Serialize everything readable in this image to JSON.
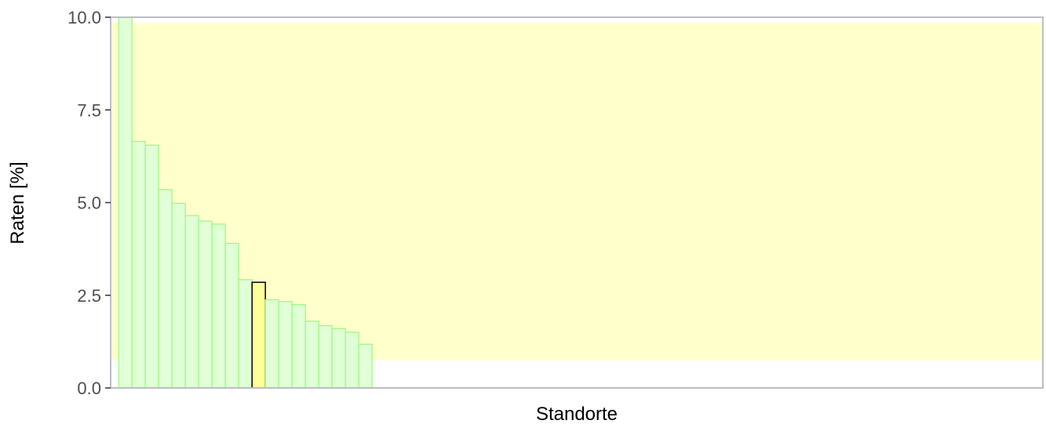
{
  "chart_data": {
    "type": "bar",
    "xlabel": "Standorte",
    "ylabel": "Raten  [%]",
    "ylim": [
      0,
      10
    ],
    "y_ticks": [
      "0.0",
      "2.5",
      "5.0",
      "7.5",
      "10.0"
    ],
    "y_tick_values": [
      0,
      2.5,
      5.0,
      7.5,
      10.0
    ],
    "reference_band": {
      "low": 0.75,
      "high": 9.85,
      "color": "#ffffcc"
    },
    "slots_total": 70,
    "values": [
      10.0,
      6.65,
      6.55,
      5.35,
      4.98,
      4.65,
      4.5,
      4.42,
      3.9,
      2.92,
      2.85,
      2.38,
      2.33,
      2.25,
      1.8,
      1.68,
      1.6,
      1.5,
      1.18
    ],
    "highlight_index": 10,
    "colors": {
      "bar_fill": "#e0ffd6",
      "bar_stroke": "#9cf582",
      "highlight_fill": "#ffff99",
      "highlight_stroke": "#000000",
      "axis": "#bdbdc7"
    },
    "grid": false,
    "legend": "none"
  }
}
